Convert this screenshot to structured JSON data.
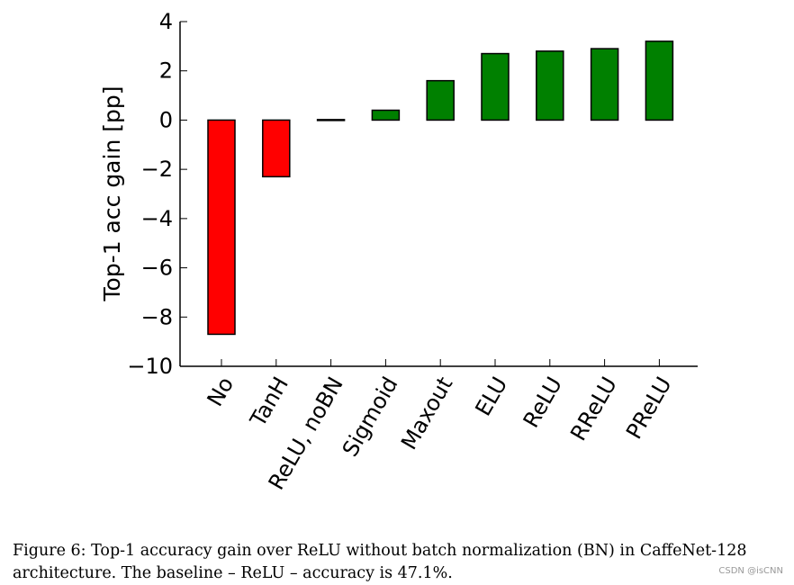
{
  "chart_data": {
    "type": "bar",
    "categories": [
      "No",
      "TanH",
      "ReLU, noBN",
      "Sigmoid",
      "Maxout",
      "ELU",
      "ReLU",
      "RReLU",
      "PReLU"
    ],
    "values": [
      -8.7,
      -2.3,
      0.02,
      0.4,
      1.6,
      2.7,
      2.8,
      2.9,
      3.2
    ],
    "colors": [
      "#ff0000",
      "#ff0000",
      "#008000",
      "#008000",
      "#008000",
      "#008000",
      "#008000",
      "#008000",
      "#008000"
    ],
    "title": "",
    "xlabel": "",
    "ylabel": "Top-1 acc gain [pp]",
    "ylim": [
      -10,
      4
    ],
    "yticks": [
      4,
      2,
      0,
      -2,
      -4,
      -6,
      -8,
      -10
    ],
    "ytick_labels": [
      "4",
      "2",
      "0",
      "−2",
      "−4",
      "−6",
      "−8",
      "−10"
    ],
    "grid": false
  },
  "caption": "Figure 6: Top-1 accuracy gain over ReLU without batch normalization (BN) in CaffeNet-128 architecture. The baseline – ReLU – accuracy is 47.1%.",
  "watermark": "CSDN @isCNN"
}
